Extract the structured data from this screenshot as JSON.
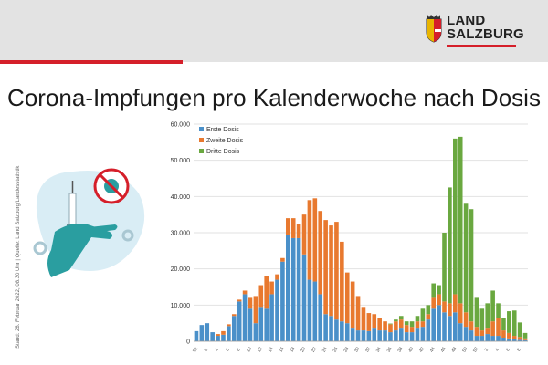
{
  "header": {
    "logo_line1": "LAND",
    "logo_line2": "SALZBURG",
    "logo_icon": "salzburg-coat-of-arms-icon",
    "accent_color": "#d51f2a"
  },
  "side_note": "Stand: 28. Februar 2022, 08.30 Uhr  |  Quelle: Land Salzburg/Landesstatistik",
  "illustration": {
    "icon": "vaccination-virus-illustration"
  },
  "chart_data": {
    "type": "bar",
    "stacked": true,
    "title": "Corona-Impfungen pro Kalenderwoche nach Dosis",
    "xlabel": "",
    "ylabel": "",
    "ylim": [
      0,
      60000
    ],
    "y_ticks": [
      "0",
      "10.000",
      "20.000",
      "30.000",
      "40.000",
      "50.000",
      "60.000"
    ],
    "grid": true,
    "legend_position": "top-left",
    "categories": [
      "52",
      "1",
      "2",
      "3",
      "4",
      "5",
      "6",
      "7",
      "8",
      "9",
      "10",
      "11",
      "12",
      "13",
      "14",
      "15",
      "16",
      "17",
      "18",
      "19",
      "20",
      "21",
      "22",
      "23",
      "24",
      "25",
      "26",
      "27",
      "28",
      "29",
      "30",
      "31",
      "32",
      "33",
      "34",
      "35",
      "36",
      "37",
      "38",
      "39",
      "40",
      "41",
      "42",
      "43",
      "44",
      "45",
      "46",
      "47",
      "48",
      "49",
      "50",
      "51",
      "52",
      "1",
      "2",
      "3",
      "4",
      "5",
      "6",
      "7",
      "8",
      "9"
    ],
    "x_tick_labels": [
      "52",
      "2",
      "4",
      "6",
      "8",
      "10",
      "12",
      "14",
      "16",
      "18",
      "20",
      "22",
      "24",
      "26",
      "28",
      "30",
      "32",
      "34",
      "36",
      "38",
      "40",
      "42",
      "44",
      "46",
      "48",
      "50",
      "52",
      "2",
      "4",
      "6",
      "8"
    ],
    "series": [
      {
        "name": "Erste Dosis",
        "color": "#4a90c9",
        "values": [
          2800,
          4500,
          5000,
          2500,
          1500,
          1800,
          4200,
          7000,
          11000,
          13000,
          9000,
          5000,
          9500,
          9000,
          13000,
          17000,
          22000,
          29500,
          28500,
          28500,
          24000,
          17000,
          16500,
          13000,
          7500,
          7000,
          6000,
          5500,
          5000,
          3500,
          3000,
          3000,
          2800,
          3500,
          3000,
          3000,
          2500,
          3000,
          3500,
          2500,
          2500,
          3500,
          4000,
          6000,
          9000,
          10000,
          8000,
          7000,
          8000,
          5000,
          4000,
          3000,
          1500,
          1500,
          2000,
          1500,
          1500,
          1000,
          800,
          500,
          400,
          300
        ]
      },
      {
        "name": "Zweite Dosis",
        "color": "#e8792f",
        "values": [
          0,
          0,
          0,
          0,
          500,
          1000,
          500,
          500,
          500,
          1000,
          3000,
          7500,
          6000,
          9000,
          3500,
          1500,
          1000,
          4500,
          5500,
          4000,
          11000,
          22000,
          23000,
          23000,
          26000,
          25000,
          27000,
          22000,
          14000,
          13000,
          9500,
          6500,
          5000,
          4000,
          3500,
          2500,
          2200,
          2500,
          2500,
          2000,
          1500,
          2000,
          1500,
          1500,
          3000,
          3000,
          3000,
          3500,
          5000,
          5500,
          4000,
          2500,
          2500,
          1500,
          1500,
          4000,
          5000,
          2000,
          1500,
          1000,
          800,
          500
        ]
      },
      {
        "name": "Dritte Dosis",
        "color": "#6aa840",
        "values": [
          0,
          0,
          0,
          0,
          0,
          0,
          0,
          0,
          0,
          0,
          0,
          0,
          0,
          0,
          0,
          0,
          0,
          0,
          0,
          0,
          0,
          0,
          0,
          0,
          0,
          0,
          0,
          0,
          0,
          0,
          0,
          0,
          0,
          0,
          0,
          0,
          200,
          500,
          1000,
          1000,
          1500,
          1500,
          3500,
          2500,
          4000,
          2500,
          19000,
          32000,
          43000,
          46000,
          30000,
          31000,
          8000,
          6000,
          7000,
          8500,
          4000,
          3500,
          6000,
          7000,
          4000,
          1500
        ]
      }
    ]
  }
}
